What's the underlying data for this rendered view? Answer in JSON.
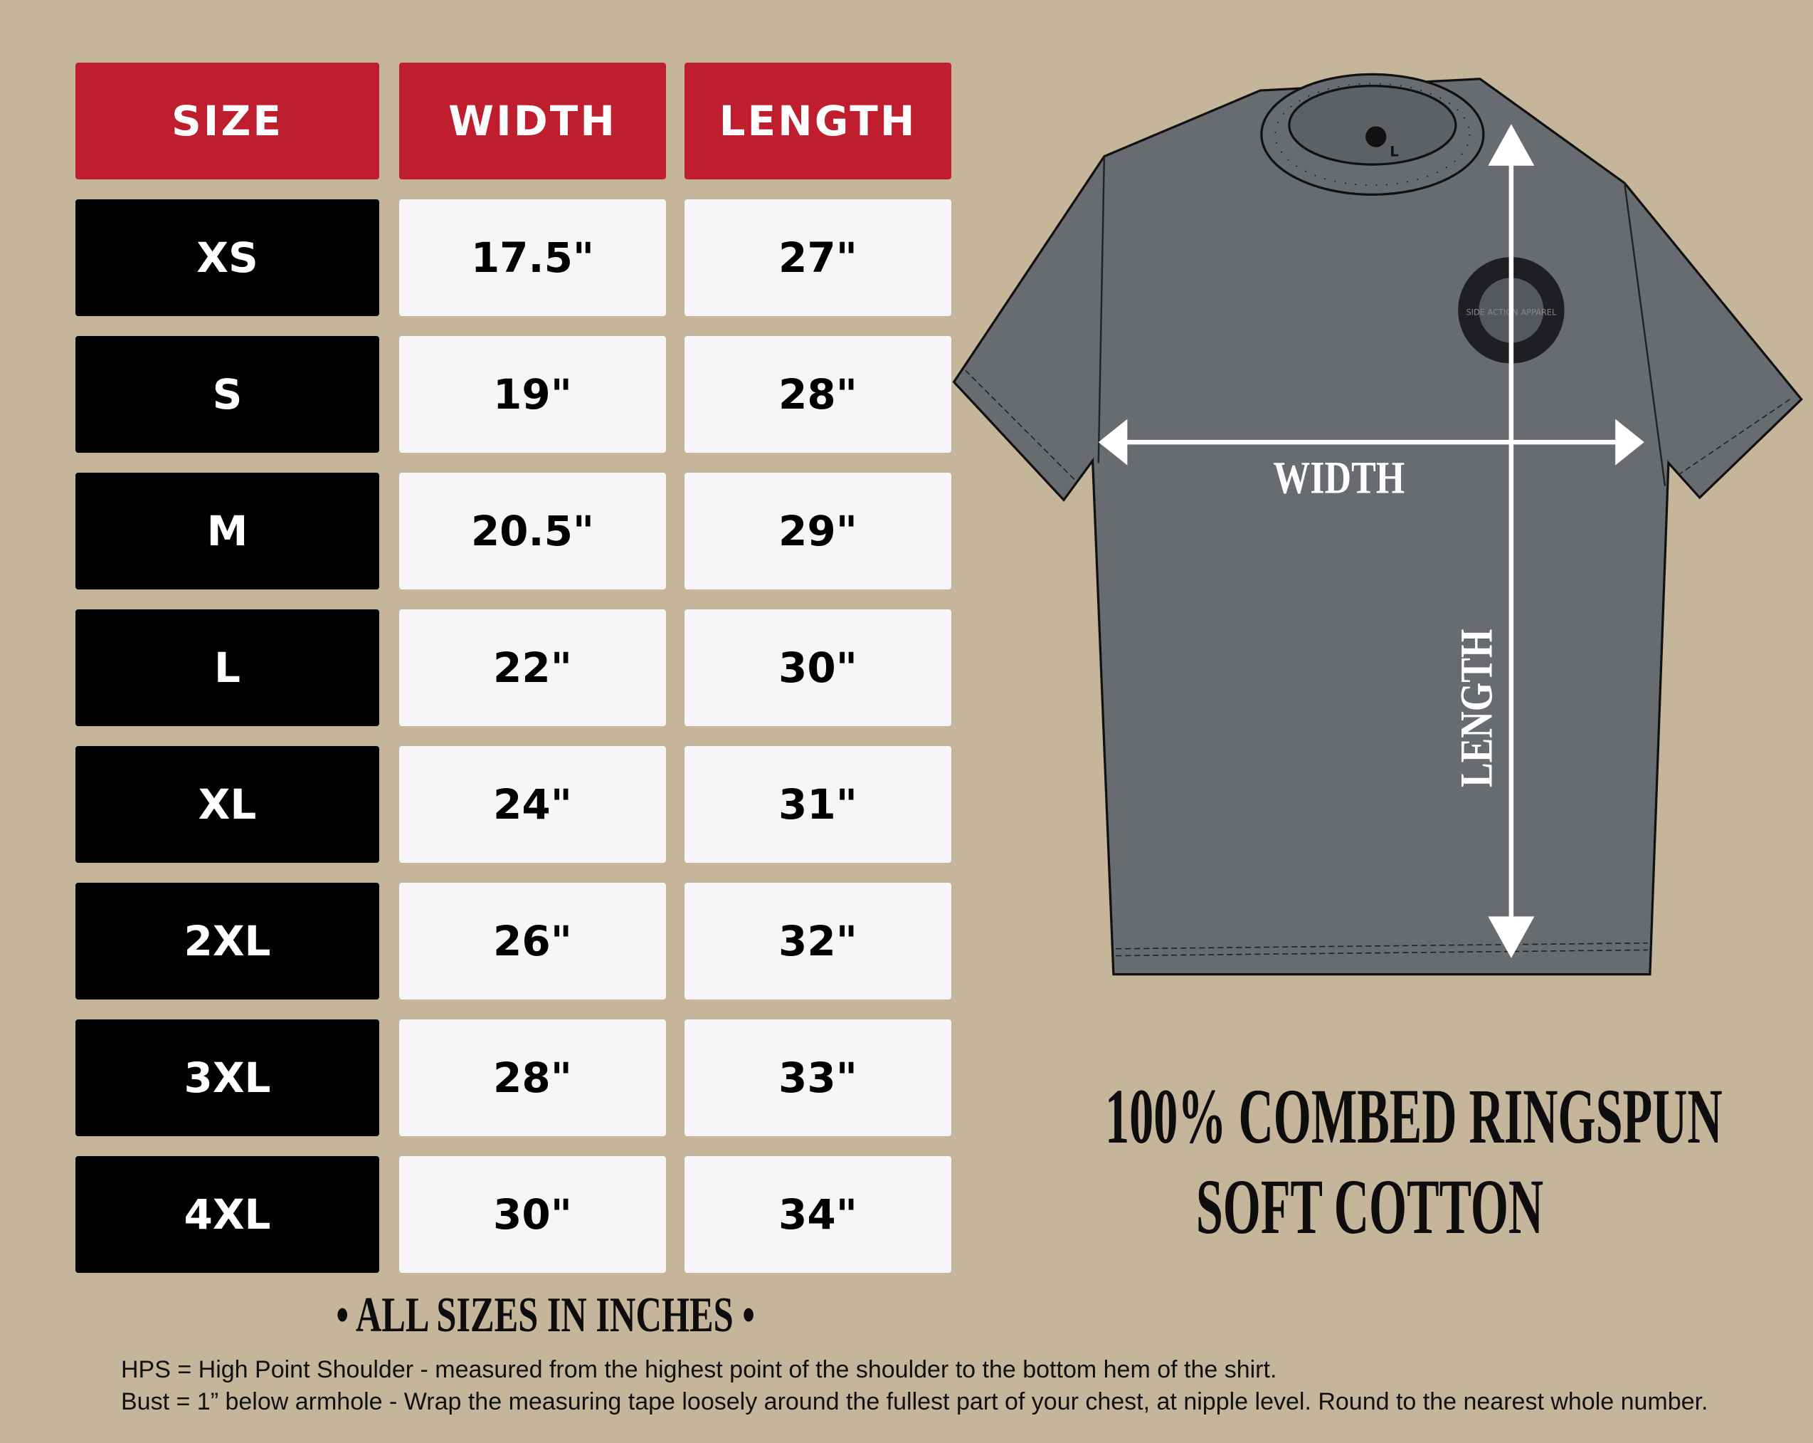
{
  "table": {
    "headers": [
      "SIZE",
      "WIDTH",
      "LENGTH"
    ],
    "rows": [
      {
        "size": "XS",
        "width": "17.5\"",
        "length": "27\""
      },
      {
        "size": "S",
        "width": "19\"",
        "length": "28\""
      },
      {
        "size": "M",
        "width": "20.5\"",
        "length": "29\""
      },
      {
        "size": "L",
        "width": "22\"",
        "length": "30\""
      },
      {
        "size": "XL",
        "width": "24\"",
        "length": "31\""
      },
      {
        "size": "2XL",
        "width": "26\"",
        "length": "32\""
      },
      {
        "size": "3XL",
        "width": "28\"",
        "length": "33\""
      },
      {
        "size": "4XL",
        "width": "30\"",
        "length": "34\""
      }
    ]
  },
  "units_note": "• ALL SIZES IN INCHES •",
  "notes": [
    "HPS = High Point Shoulder - measured from the highest point of the shoulder to the bottom hem of the shirt.",
    "Bust = 1” below armhole - Wrap the measuring tape loosely around the fullest part of your chest, at nipple level. Round to the nearest whole number."
  ],
  "diagram": {
    "width_label": "WIDTH",
    "length_label": "LENGTH",
    "logo_text": "SIDE ACTION APPAREL",
    "tag_size": "L"
  },
  "fabric": {
    "line1": "100% COMBED RINGSPUN",
    "line2": "SOFT COTTON"
  },
  "colors": {
    "background": "#c4b59b",
    "header": "#be1e2d",
    "shirt": "#686b70"
  }
}
